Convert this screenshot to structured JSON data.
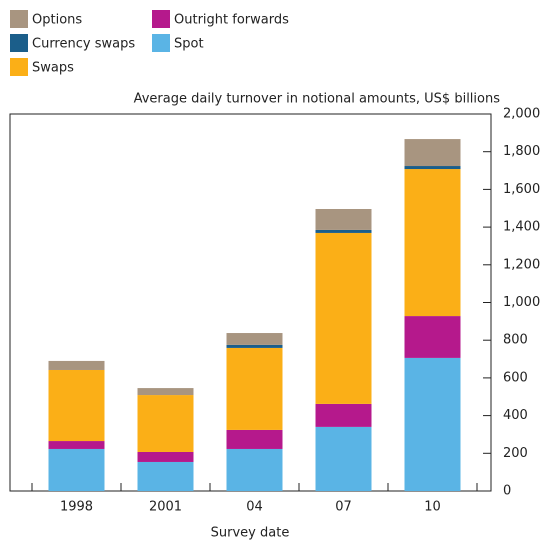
{
  "chart_data": {
    "type": "stacked_bar",
    "y_axis_title": "Average daily turnover in notional amounts, US$ billions",
    "x_axis_title": "Survey date",
    "categories": [
      "1998",
      "2001",
      "04",
      "07",
      "10"
    ],
    "series": [
      {
        "name": "Spot",
        "color": "#5ab4e5",
        "values": [
          223,
          154,
          223,
          340,
          706
        ]
      },
      {
        "name": "Outright forwards",
        "color": "#b5198c",
        "values": [
          42,
          53,
          101,
          122,
          222
        ]
      },
      {
        "name": "Swaps",
        "color": "#fbaf17",
        "values": [
          377,
          302,
          435,
          907,
          780
        ]
      },
      {
        "name": "Currency swaps",
        "color": "#1b5e8a",
        "values": [
          0,
          0,
          16,
          16,
          16
        ]
      },
      {
        "name": "Options",
        "color": "#a89580",
        "values": [
          48,
          37,
          63,
          111,
          143
        ]
      }
    ],
    "ylim": [
      0,
      2000
    ],
    "yticks": [
      0,
      200,
      400,
      600,
      800,
      {
        "value": 1000,
        "label": "1,000"
      },
      {
        "value": 1200,
        "label": "1,200"
      },
      {
        "value": 1400,
        "label": "1,400"
      },
      {
        "value": 1600,
        "label": "1,600"
      },
      {
        "value": 1800,
        "label": "1,800"
      },
      {
        "value": 2000,
        "label": "2,000"
      }
    ]
  }
}
